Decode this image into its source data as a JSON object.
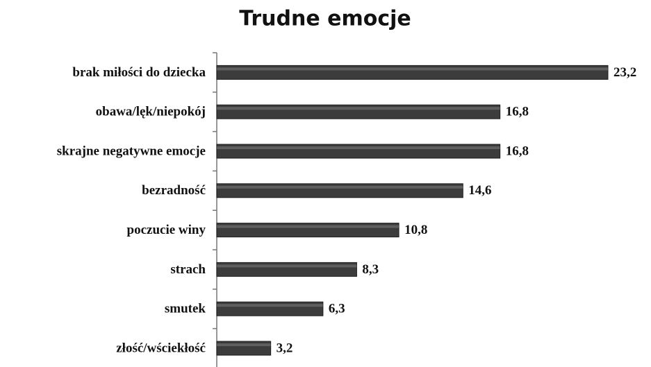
{
  "chart_data": {
    "type": "bar",
    "orientation": "horizontal",
    "title": "Trudne emocje",
    "categories": [
      "brak miłości do dziecka",
      "obawa/lęk/niepokój",
      "skrajne negatywne emocje",
      "bezradność",
      "poczucie winy",
      "strach",
      "smutek",
      "złość/wściekłość"
    ],
    "values": [
      23.2,
      16.8,
      16.8,
      14.6,
      10.8,
      8.3,
      6.3,
      3.2
    ],
    "value_labels": [
      "23,2",
      "16,8",
      "16,8",
      "14,6",
      "10,8",
      "8,3",
      "6,3",
      "3,2"
    ],
    "color": "#3c3c3c"
  }
}
